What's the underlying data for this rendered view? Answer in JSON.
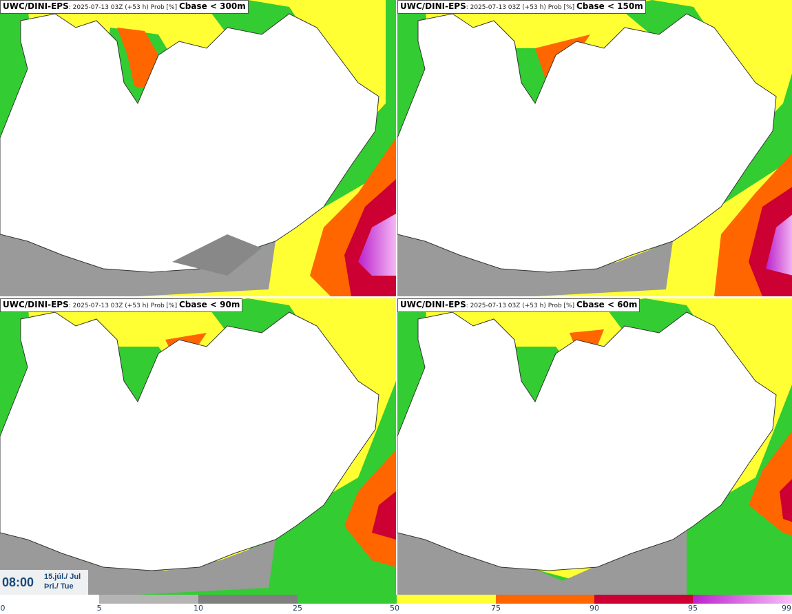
{
  "panels": [
    {
      "source": "UWC/DINI-EPS",
      "meta": ": 2025-07-13 03Z (+53 h) Prob [%] ",
      "variable": "Cbase < 300m"
    },
    {
      "source": "UWC/DINI-EPS",
      "meta": ": 2025-07-13 03Z (+53 h) Prob [%] ",
      "variable": "Cbase < 150m"
    },
    {
      "source": "UWC/DINI-EPS",
      "meta": ": 2025-07-13 03Z (+53 h) Prob [%] ",
      "variable": "Cbase < 90m"
    },
    {
      "source": "UWC/DINI-EPS",
      "meta": ": 2025-07-13 03Z (+53 h) Prob [%] ",
      "variable": "Cbase < 60m"
    }
  ],
  "timebox": {
    "time": "08:00",
    "date_line1": "15.júl./ Jul",
    "date_line2": "Þri./ Tue"
  },
  "legend": {
    "ticks": [
      "0",
      "5",
      "10",
      "25",
      "50",
      "75",
      "90",
      "95",
      "99"
    ],
    "colors": {
      "5-10": "#b4b4b4",
      "10-25": "#808080",
      "25-50": "#33cc33",
      "50-75": "#ffff33",
      "75-90": "#ff6600",
      "90-95": "#cc0033",
      "95-99": "#bb22cc"
    }
  }
}
